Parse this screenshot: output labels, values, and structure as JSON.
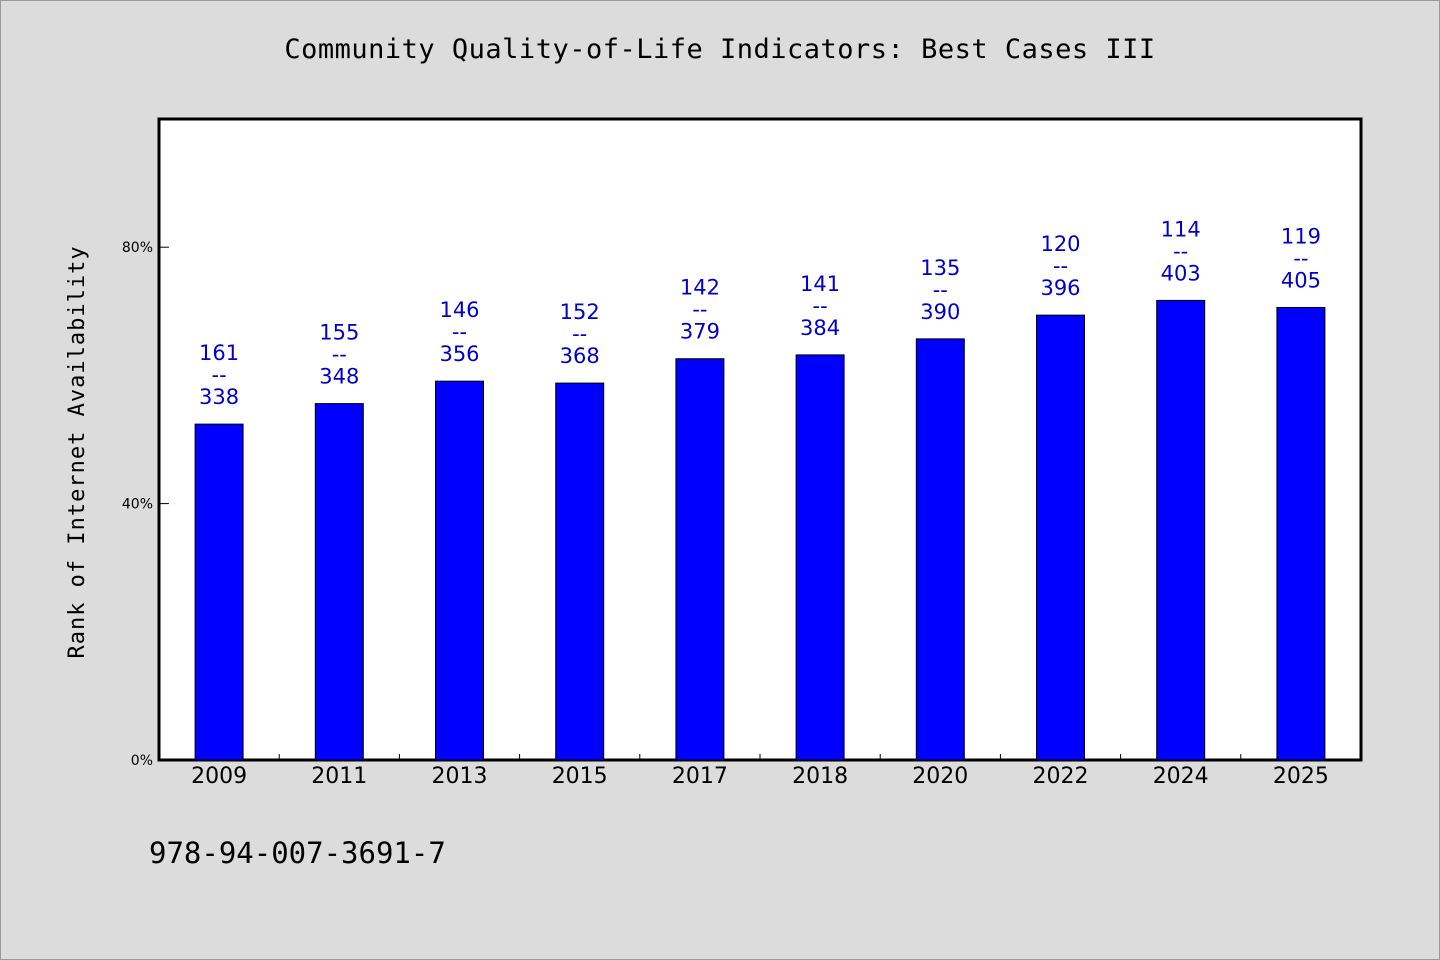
{
  "title": "Community Quality-of-Life Indicators: Best Cases III",
  "footer": "978-94-007-3691-7",
  "chart_data": {
    "type": "bar",
    "title": "Community Quality-of-Life Indicators: Best Cases III",
    "xlabel": "",
    "ylabel": "Rank of Internet Availability",
    "ylim": [
      0,
      100
    ],
    "yticks": [
      0,
      40,
      80
    ],
    "ytick_labels": [
      "0%",
      "40%",
      "80%"
    ],
    "categories": [
      "2009",
      "2011",
      "2013",
      "2015",
      "2017",
      "2018",
      "2020",
      "2022",
      "2024",
      "2025"
    ],
    "values": [
      52.4,
      55.6,
      59.1,
      58.8,
      62.6,
      63.2,
      65.7,
      69.4,
      71.7,
      70.6
    ],
    "bar_labels": [
      [
        "161",
        "--",
        "338"
      ],
      [
        "155",
        "--",
        "348"
      ],
      [
        "146",
        "--",
        "356"
      ],
      [
        "152",
        "--",
        "368"
      ],
      [
        "142",
        "--",
        "379"
      ],
      [
        "141",
        "--",
        "384"
      ],
      [
        "135",
        "--",
        "390"
      ],
      [
        "120",
        "--",
        "396"
      ],
      [
        "114",
        "--",
        "403"
      ],
      [
        "119",
        "--",
        "405"
      ]
    ],
    "grid": false,
    "colors": {
      "bar": "#0000ff",
      "bar_label": "#0000cc",
      "plot_background": "#ffffff",
      "page_background": "#dcdcdc"
    }
  }
}
